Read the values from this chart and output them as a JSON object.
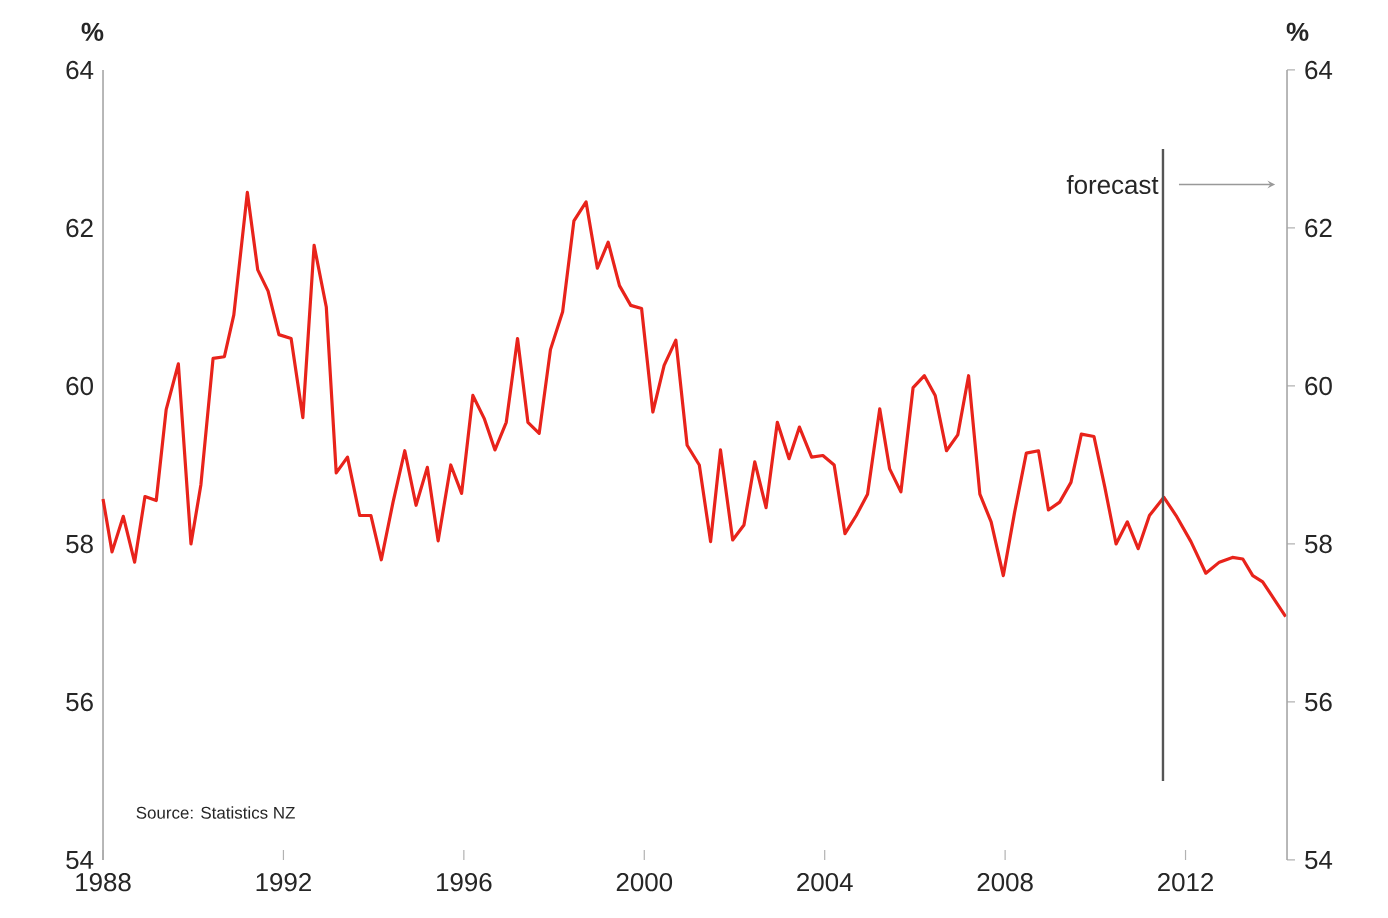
{
  "chart_data": {
    "type": "line",
    "ylabel": "%",
    "y2label": "%",
    "x": [
      1988.0,
      1988.2,
      1988.45,
      1988.7,
      1988.93,
      1989.18,
      1989.4,
      1989.67,
      1989.95,
      1990.17,
      1990.44,
      1990.69,
      1990.9,
      1991.2,
      1991.43,
      1991.66,
      1991.9,
      1992.17,
      1992.43,
      1992.68,
      1992.95,
      1993.17,
      1993.42,
      1993.69,
      1993.94,
      1994.17,
      1994.43,
      1994.69,
      1994.94,
      1995.19,
      1995.43,
      1995.71,
      1995.95,
      1996.2,
      1996.45,
      1996.69,
      1996.94,
      1997.19,
      1997.42,
      1997.67,
      1997.92,
      1998.19,
      1998.44,
      1998.71,
      1998.96,
      1999.2,
      1999.45,
      1999.7,
      1999.94,
      2000.19,
      2000.44,
      2000.7,
      2000.95,
      2001.22,
      2001.47,
      2001.69,
      2001.96,
      2002.21,
      2002.45,
      2002.7,
      2002.95,
      2003.21,
      2003.44,
      2003.71,
      2003.96,
      2004.21,
      2004.45,
      2004.7,
      2004.95,
      2005.22,
      2005.44,
      2005.69,
      2005.96,
      2006.21,
      2006.45,
      2006.7,
      2006.95,
      2007.19,
      2007.44,
      2007.69,
      2007.96,
      2008.21,
      2008.47,
      2008.74,
      2008.96,
      2009.21,
      2009.46,
      2009.69,
      2009.97,
      2010.21,
      2010.46,
      2010.71,
      2010.95,
      2011.2,
      2011.52,
      2011.79,
      2012.12,
      2012.45,
      2012.75,
      2013.04,
      2013.27,
      2013.49,
      2013.71,
      2014.0,
      2014.22
    ],
    "series": [
      {
        "color": "#e8231b",
        "values": [
          58.57,
          57.9,
          58.35,
          57.77,
          58.6,
          58.55,
          59.7,
          60.28,
          58.0,
          58.75,
          60.35,
          60.37,
          60.9,
          62.45,
          61.47,
          61.2,
          60.65,
          60.6,
          59.6,
          61.78,
          61.0,
          58.9,
          59.1,
          58.36,
          58.36,
          57.8,
          58.53,
          59.18,
          58.49,
          58.97,
          58.04,
          59.0,
          58.64,
          59.88,
          59.59,
          59.19,
          59.54,
          60.6,
          59.54,
          59.4,
          60.46,
          60.94,
          62.09,
          62.33,
          61.49,
          61.82,
          61.27,
          61.02,
          60.98,
          59.67,
          60.26,
          60.58,
          59.25,
          59.0,
          58.03,
          59.19,
          58.05,
          58.24,
          59.04,
          58.46,
          59.54,
          59.08,
          59.48,
          59.1,
          59.12,
          59.0,
          58.13,
          58.36,
          58.63,
          59.71,
          58.95,
          58.66,
          59.98,
          60.13,
          59.88,
          59.18,
          59.38,
          60.13,
          58.63,
          58.28,
          57.6,
          58.4,
          59.15,
          59.18,
          58.43,
          58.53,
          58.78,
          59.39,
          59.36,
          58.72,
          58.0,
          58.28,
          57.94,
          58.36,
          58.59,
          58.36,
          58.03,
          57.63,
          57.77,
          57.83,
          57.81,
          57.6,
          57.52,
          57.27,
          57.08
        ]
      }
    ],
    "xlim": [
      1988,
      2014.25
    ],
    "xticks": [
      1988,
      1992,
      1996,
      2000,
      2004,
      2008,
      2012
    ],
    "ylim": [
      54,
      64
    ],
    "yticks": [
      54,
      56,
      58,
      60,
      62,
      64
    ],
    "y2lim": [
      54,
      64
    ],
    "y2ticks": [
      54,
      56,
      58,
      60,
      62,
      64
    ],
    "ref_lines": [
      {
        "axis": "x",
        "value": 2011.5,
        "label": "forecast",
        "color": "#555555"
      }
    ],
    "annotations": [
      "Source:  Statistics NZ"
    ],
    "grid": false,
    "marker": "none",
    "line_style": "solid"
  }
}
